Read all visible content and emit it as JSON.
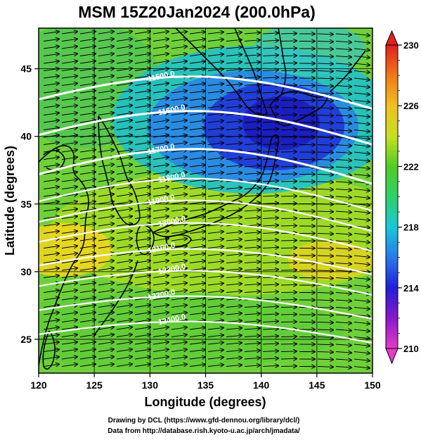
{
  "title": "MSM 15Z20Jan2024 (200.0hPa)",
  "xlabel": "Longitude (degrees)",
  "ylabel": "Latitude  (degrees)",
  "credits": [
    "Drawing by DCL (https://www.gfd-dennou.org/library/dcl/)",
    "Data from http://database.rish.kyoto-u.ac.jp/arch/jmadata/"
  ],
  "map": {
    "lon_range": [
      120,
      150
    ],
    "lat_range": [
      22.5,
      48
    ],
    "lon_ticks": [
      "120",
      "125",
      "130",
      "135",
      "140",
      "145",
      "150"
    ],
    "lat_ticks": [
      "25",
      "30",
      "35",
      "40",
      "45"
    ],
    "grid": true,
    "field": "temperature (K)",
    "colorbar": {
      "min": 210,
      "max": 230,
      "ticks": [
        "210",
        "214",
        "218",
        "222",
        "226",
        "230"
      ],
      "colors": [
        "#e23cc8",
        "#8a18c8",
        "#2020d8",
        "#2a78e8",
        "#18c8d8",
        "#30d068",
        "#50cc28",
        "#c8e020",
        "#f0c020",
        "#f07818",
        "#e02020"
      ]
    },
    "contours": [
      {
        "label": "11500.0"
      },
      {
        "label": "11600.0"
      },
      {
        "label": "11700.0"
      },
      {
        "label": "11800.0"
      },
      {
        "label": "11900.0"
      },
      {
        "label": "12000.0"
      },
      {
        "label": "12100.0"
      },
      {
        "label": "12200.0"
      },
      {
        "label": "12300.0"
      },
      {
        "label": "12400.0"
      }
    ]
  }
}
